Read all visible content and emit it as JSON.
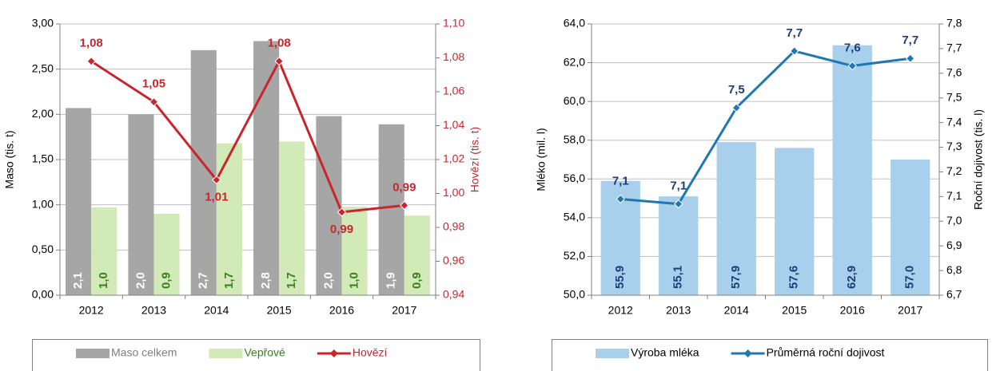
{
  "chart_data": [
    {
      "type": "bar",
      "categories": [
        "2012",
        "2013",
        "2014",
        "2015",
        "2016",
        "2017"
      ],
      "ylabel": "Maso (tis. t)",
      "y2label": "Hovězí (tis. t)",
      "ylim": [
        0,
        3
      ],
      "yticks": [
        {
          "value": 0,
          "label": "0,00"
        },
        {
          "value": 0.5,
          "label": "0,50"
        },
        {
          "value": 1,
          "label": "1,00"
        },
        {
          "value": 1.5,
          "label": "1,50"
        },
        {
          "value": 2,
          "label": "2,00"
        },
        {
          "value": 2.5,
          "label": "2,50"
        },
        {
          "value": 3,
          "label": "3,00"
        }
      ],
      "y2lim": [
        0.94,
        1.1
      ],
      "y2ticks": [
        {
          "value": 0.94,
          "label": "0,94"
        },
        {
          "value": 0.96,
          "label": "0,96"
        },
        {
          "value": 0.98,
          "label": "0,98"
        },
        {
          "value": 1,
          "label": "1,00"
        },
        {
          "value": 1.02,
          "label": "1,02"
        },
        {
          "value": 1.04,
          "label": "1,04"
        },
        {
          "value": 1.06,
          "label": "1,06"
        },
        {
          "value": 1.08,
          "label": "1,08"
        },
        {
          "value": 1.1,
          "label": "1,10"
        }
      ],
      "grid": true,
      "legend": "bottom",
      "series": [
        {
          "name": "Maso celkem",
          "type": "bar",
          "color": "#a6a6a6",
          "label_color": "#ffffff",
          "values": [
            2.07,
            2.0,
            2.71,
            2.81,
            1.98,
            1.89
          ],
          "value_labels": [
            "2,1",
            "2,0",
            "2,7",
            "2,8",
            "2,0",
            "1,9"
          ]
        },
        {
          "name": "Vepřové",
          "type": "bar",
          "color": "#d2e9b8",
          "label_color": "#3a7d1e",
          "values": [
            0.97,
            0.9,
            1.68,
            1.7,
            0.98,
            0.88
          ],
          "value_labels": [
            "1,0",
            "0,9",
            "1,7",
            "1,7",
            "1,0",
            "0,9"
          ]
        },
        {
          "name": "Hovězí",
          "type": "line",
          "axis": "y2",
          "color": "#c8262c",
          "label_color": "#c8262c",
          "values": [
            1.078,
            1.054,
            1.008,
            1.078,
            0.989,
            0.993
          ],
          "value_labels": [
            "1,08",
            "1,05",
            "1,01",
            "1,08",
            "0,99",
            "0,99"
          ]
        }
      ]
    },
    {
      "type": "bar",
      "categories": [
        "2012",
        "2013",
        "2014",
        "2015",
        "2016",
        "2017"
      ],
      "ylabel": "Mléko (mil. l)",
      "y2label": "Roční dojivost (tis. l)",
      "ylim": [
        50,
        64
      ],
      "yticks": [
        {
          "value": 50,
          "label": "50,0"
        },
        {
          "value": 52,
          "label": "52,0"
        },
        {
          "value": 54,
          "label": "54,0"
        },
        {
          "value": 56,
          "label": "56,0"
        },
        {
          "value": 58,
          "label": "58,0"
        },
        {
          "value": 60,
          "label": "60,0"
        },
        {
          "value": 62,
          "label": "62,0"
        },
        {
          "value": 64,
          "label": "64,0"
        }
      ],
      "y2lim": [
        6.7,
        7.8
      ],
      "y2ticks": [
        {
          "value": 6.7,
          "label": "6,7"
        },
        {
          "value": 6.8,
          "label": "6,8"
        },
        {
          "value": 6.9,
          "label": "6,9"
        },
        {
          "value": 7,
          "label": "7,0"
        },
        {
          "value": 7.1,
          "label": "7,1"
        },
        {
          "value": 7.2,
          "label": "7,2"
        },
        {
          "value": 7.3,
          "label": "7,3"
        },
        {
          "value": 7.4,
          "label": "7,4"
        },
        {
          "value": 7.5,
          "label": "7,5"
        },
        {
          "value": 7.6,
          "label": "7,6"
        },
        {
          "value": 7.7,
          "label": "7,7"
        },
        {
          "value": 7.8,
          "label": "7,8"
        }
      ],
      "grid": true,
      "legend": "bottom",
      "series": [
        {
          "name": "Výroba mléka",
          "type": "bar",
          "color": "#a8cfeb",
          "label_color": "#1f3d7a",
          "values": [
            55.9,
            55.1,
            57.9,
            57.6,
            62.9,
            57.0
          ],
          "value_labels": [
            "55,9",
            "55,1",
            "57,9",
            "57,6",
            "62,9",
            "57,0"
          ]
        },
        {
          "name": "Průměrná roční dojivost",
          "type": "line",
          "axis": "y2",
          "color": "#1f77b4",
          "label_color": "#1f3d7a",
          "values": [
            7.09,
            7.07,
            7.46,
            7.69,
            7.63,
            7.66
          ],
          "value_labels": [
            "7,1",
            "7,1",
            "7,5",
            "7,7",
            "7,6",
            "7,7"
          ]
        }
      ]
    }
  ]
}
